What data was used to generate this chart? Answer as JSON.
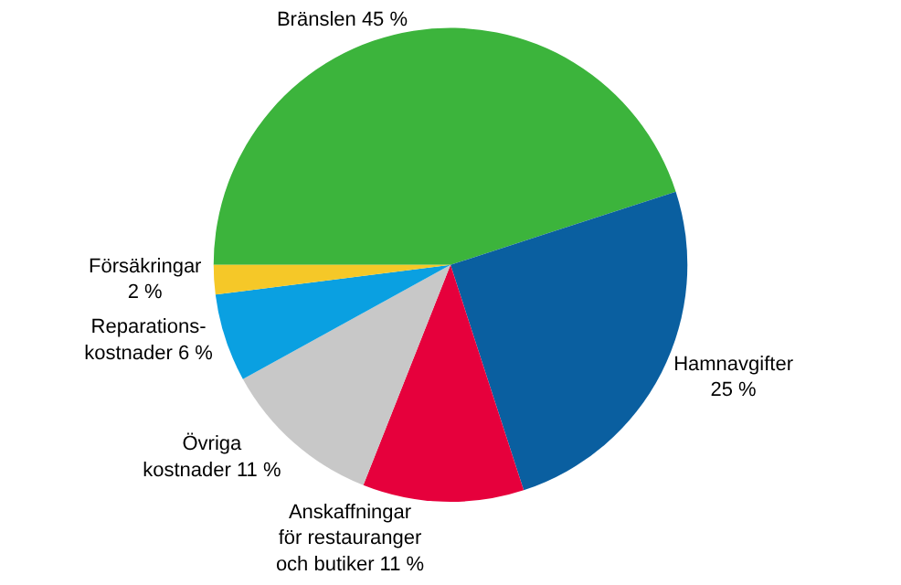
{
  "chart_data": {
    "type": "pie",
    "categories": [
      "Bränslen 45 %",
      "Hamnavgifter\n25 %",
      "Anskaffningar\nför restauranger\noch butiker 11 %",
      "Övriga\nkostnader 11 %",
      "Reparations-\nkostnader 6 %",
      "Försäkringar\n2 %"
    ],
    "values": [
      45,
      25,
      11,
      11,
      6,
      2
    ],
    "colors": [
      "#3cb43c",
      "#0a5fa0",
      "#e6003c",
      "#c8c8c8",
      "#0aa0e1",
      "#f5c828"
    ]
  }
}
